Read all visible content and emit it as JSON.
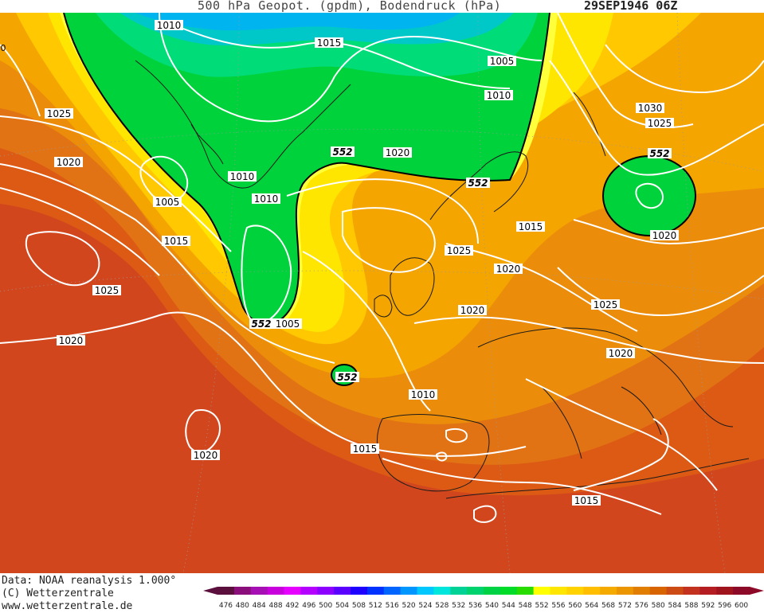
{
  "header": {
    "title": "500 hPa Geopot. (gpdm), Bodendruck (hPa)",
    "datetime": "29SEP1946 06Z"
  },
  "footer": {
    "data_source": "Data: NOAA reanalysis 1.000°",
    "copyright": "(C) Wetterzentrale",
    "website": "www.wetterzentrale.de"
  },
  "map": {
    "pressure_labels": [
      "1010",
      "1015",
      "1005",
      "1010",
      "1025",
      "1020",
      "1005",
      "1010",
      "1010",
      "1015",
      "1025",
      "1005",
      "1020",
      "1030",
      "1025",
      "1020",
      "1015",
      "1025",
      "1020",
      "1020",
      "1025",
      "1010",
      "1015",
      "1020",
      "1020",
      "1015",
      "0"
    ],
    "height_labels": [
      "552",
      "552",
      "552",
      "552",
      "552"
    ]
  },
  "legend": {
    "values": [
      "476",
      "480",
      "484",
      "488",
      "492",
      "496",
      "500",
      "504",
      "508",
      "512",
      "516",
      "520",
      "524",
      "528",
      "532",
      "536",
      "540",
      "544",
      "548",
      "552",
      "556",
      "560",
      "564",
      "568",
      "572",
      "576",
      "580",
      "584",
      "588",
      "592",
      "596",
      "600"
    ],
    "colors": [
      "#5a0f3c",
      "#8a0f7a",
      "#a60fb4",
      "#c800dc",
      "#e600ff",
      "#b400ff",
      "#8c00ff",
      "#5a00ff",
      "#1e00ff",
      "#0032ff",
      "#0064ff",
      "#0096ff",
      "#00c8ff",
      "#00e6dc",
      "#00d296",
      "#00d26e",
      "#00d246",
      "#00dc28",
      "#28dc00",
      "#ffff00",
      "#ffe600",
      "#ffd200",
      "#ffbe00",
      "#f5aa00",
      "#eb9600",
      "#e17d00",
      "#d76400",
      "#cd4b14",
      "#c3321e",
      "#b41e23",
      "#a0141e",
      "#8c0a28"
    ]
  }
}
